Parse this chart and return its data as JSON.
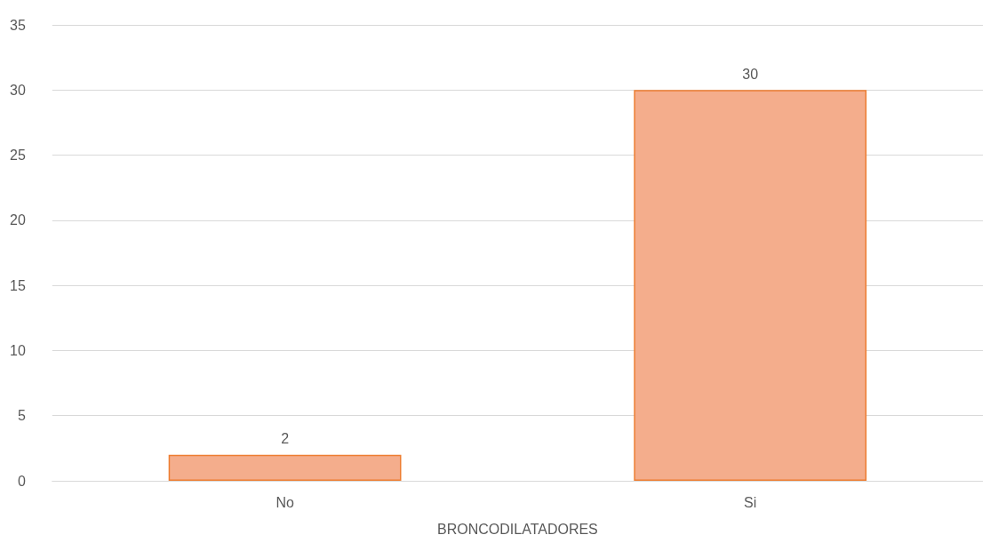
{
  "chart_data": {
    "type": "bar",
    "xlabel": "BRONCODILATADORES",
    "categories": [
      "No",
      "Si"
    ],
    "values": [
      2,
      30
    ],
    "color": "#f4ad8c",
    "ylim": [
      0,
      35
    ],
    "yticks": [
      0,
      5,
      10,
      15,
      20,
      25,
      30,
      35
    ],
    "grid": "y",
    "data_labels": true
  }
}
